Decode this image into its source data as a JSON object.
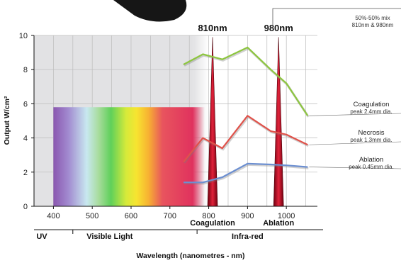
{
  "chart_data": {
    "type": "line",
    "xlabel": "Wavelength (nanometres - nm)",
    "ylabel": "Output W/cm²",
    "xlim": [
      350,
      1080
    ],
    "ylim": [
      0,
      10
    ],
    "x_ticks": [
      400,
      500,
      600,
      700,
      800,
      900,
      1000
    ],
    "y_ticks": [
      0,
      2,
      4,
      6,
      8,
      10
    ],
    "grid": true,
    "series": [
      {
        "name": "Coagulation",
        "note": "peak 2.4mm dia.",
        "color": "#8dc63f",
        "points": [
          [
            735,
            8.3
          ],
          [
            785,
            8.9
          ],
          [
            835,
            8.6
          ],
          [
            900,
            9.3
          ],
          [
            960,
            8.0
          ],
          [
            1000,
            7.2
          ],
          [
            1055,
            5.3
          ]
        ]
      },
      {
        "name": "Necrosis",
        "note": "peak 1.3mm dia.",
        "color": "#e0524a",
        "points": [
          [
            735,
            2.6
          ],
          [
            785,
            4.0
          ],
          [
            835,
            3.4
          ],
          [
            900,
            5.3
          ],
          [
            960,
            4.4
          ],
          [
            1000,
            4.2
          ],
          [
            1055,
            3.6
          ]
        ]
      },
      {
        "name": "Ablation",
        "note": "peak 0.45mm dia.",
        "color": "#6c8fd1",
        "points": [
          [
            735,
            1.4
          ],
          [
            785,
            1.4
          ],
          [
            835,
            1.7
          ],
          [
            900,
            2.5
          ],
          [
            960,
            2.45
          ],
          [
            1000,
            2.4
          ],
          [
            1055,
            2.3
          ]
        ]
      }
    ],
    "laser_peaks": [
      {
        "label": "810nm",
        "wavelength": 810,
        "region": "Coagulation"
      },
      {
        "label": "980nm",
        "wavelength": 980,
        "region": "Ablation"
      }
    ],
    "mix_note": {
      "line1": "50%-50% mix",
      "line2": "810nm & 980nm"
    },
    "regions": [
      {
        "label": "UV",
        "range": [
          350,
          450
        ]
      },
      {
        "label": "Visible Light",
        "range": [
          450,
          770
        ]
      },
      {
        "label": "Infra-red",
        "range": [
          770,
          1080
        ]
      }
    ],
    "colors": {
      "plot_background": "#e2e2e4",
      "peak_fill": "#c0142b",
      "grid": "#bcbcbc"
    }
  }
}
